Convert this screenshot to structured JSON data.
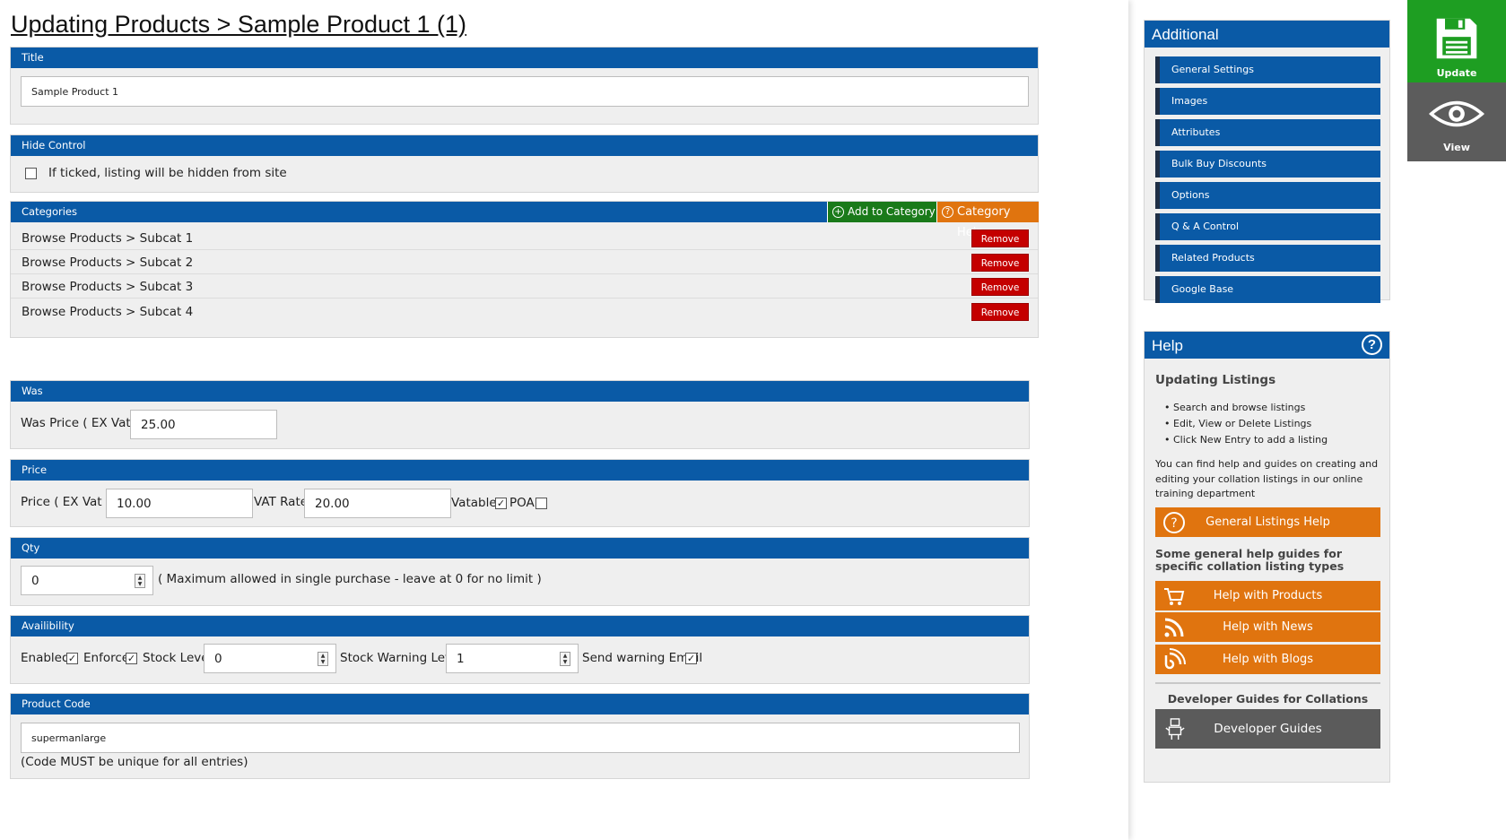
{
  "page_title": "Updating Products > Sample Product 1 (1)",
  "title_panel": {
    "header": "Title",
    "value": "Sample Product 1"
  },
  "hide_panel": {
    "header": "Hide Control",
    "checkbox_label": "If ticked, listing will be hidden from site",
    "checked": false
  },
  "categories_panel": {
    "header": "Categories",
    "add_button": "Add to Category",
    "help_button": "Category Help",
    "remove_label": "Remove",
    "rows": [
      "Browse Products > Subcat 1",
      "Browse Products > Subcat 2",
      "Browse Products > Subcat 3",
      "Browse Products > Subcat 4"
    ]
  },
  "was_panel": {
    "header": "Was",
    "label": "Was Price ( EX Vat )",
    "value": "25.00"
  },
  "price_panel": {
    "header": "Price",
    "price_label": "Price ( EX Vat )",
    "price_value": "10.00",
    "vat_label": "VAT Rate",
    "vat_value": "20.00",
    "vatable_label": "Vatable",
    "vatable_checked": true,
    "poa_label": "POA",
    "poa_checked": false
  },
  "qty_panel": {
    "header": "Qty",
    "value": "0",
    "hint": "( Maximum allowed in single purchase - leave at 0 for no limit )"
  },
  "availability_panel": {
    "header": "Availibility",
    "enabled_label": "Enabled",
    "enabled_checked": true,
    "enforce_label": "Enforce",
    "enforce_checked": true,
    "stock_label": "Stock Level",
    "stock_value": "0",
    "warning_label": "Stock Warning Level",
    "warning_value": "1",
    "email_label": "Send warning Email",
    "email_checked": true
  },
  "product_code_panel": {
    "header": "Product Code",
    "value": "supermanlarge",
    "note": "(Code MUST be unique for all entries)"
  },
  "additional": {
    "header": "Additional",
    "items": [
      "General Settings",
      "Images",
      "Attributes",
      "Bulk Buy Discounts",
      "Options",
      "Q & A Control",
      "Related Products",
      "Google Base"
    ]
  },
  "help": {
    "header": "Help",
    "title": "Updating Listings",
    "bullets": [
      "Search and browse listings",
      "Edit, View or Delete Listings",
      "Click New Entry to add a listing"
    ],
    "paragraph": "You can find help and guides on creating and editing your collation listings in our online training department",
    "general_button": "General Listings Help",
    "specific_title": "Some general help guides for specific collation listing types",
    "products_button": "Help with Products",
    "news_button": "Help with News",
    "blogs_button": "Help with Blogs",
    "dev_title": "Developer Guides for Collations",
    "dev_button": "Developer Guides"
  },
  "actions": {
    "update": "Update",
    "view": "View"
  },
  "colors": {
    "header_blue": "#0a5aa6",
    "remove_red": "#c40000",
    "help_orange": "#e0740f",
    "update_green": "#1e9e22",
    "add_green": "#1a7a1a"
  },
  "icons": {
    "update": "floppy-disk-icon",
    "view": "eye-icon",
    "help": "question-circle-icon",
    "products": "cart-icon",
    "news": "rss-icon",
    "blogs": "blog-icon",
    "developer": "robot-icon"
  }
}
